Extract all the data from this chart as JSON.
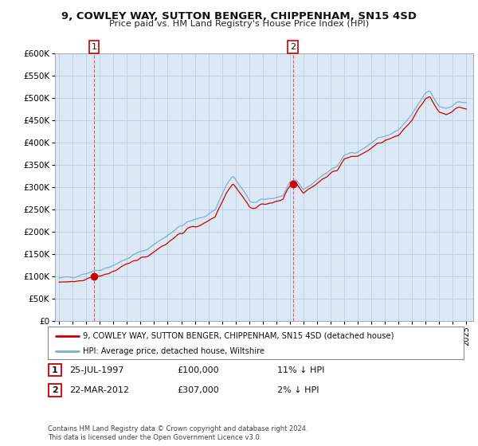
{
  "title": "9, COWLEY WAY, SUTTON BENGER, CHIPPENHAM, SN15 4SD",
  "subtitle": "Price paid vs. HM Land Registry's House Price Index (HPI)",
  "ylim": [
    0,
    600000
  ],
  "yticks": [
    0,
    50000,
    100000,
    150000,
    200000,
    250000,
    300000,
    350000,
    400000,
    450000,
    500000,
    550000,
    600000
  ],
  "xlim_start": 1994.7,
  "xlim_end": 2025.5,
  "sale1_x": 1997.57,
  "sale1_y": 100000,
  "sale2_x": 2012.22,
  "sale2_y": 307000,
  "line_color_property": "#cc0000",
  "line_color_hpi": "#7ab0d4",
  "marker_color_sale": "#cc0000",
  "legend_label_property": "9, COWLEY WAY, SUTTON BENGER, CHIPPENHAM, SN15 4SD (detached house)",
  "legend_label_hpi": "HPI: Average price, detached house, Wiltshire",
  "table_row1": [
    "1",
    "25-JUL-1997",
    "£100,000",
    "11% ↓ HPI"
  ],
  "table_row2": [
    "2",
    "22-MAR-2012",
    "£307,000",
    "2% ↓ HPI"
  ],
  "footnote": "Contains HM Land Registry data © Crown copyright and database right 2024.\nThis data is licensed under the Open Government Licence v3.0.",
  "background_color": "#ffffff",
  "plot_bg_color": "#dce9f5",
  "grid_color": "#b8cfe0",
  "vline_color": "#cc0000",
  "vline_alpha": 0.6
}
